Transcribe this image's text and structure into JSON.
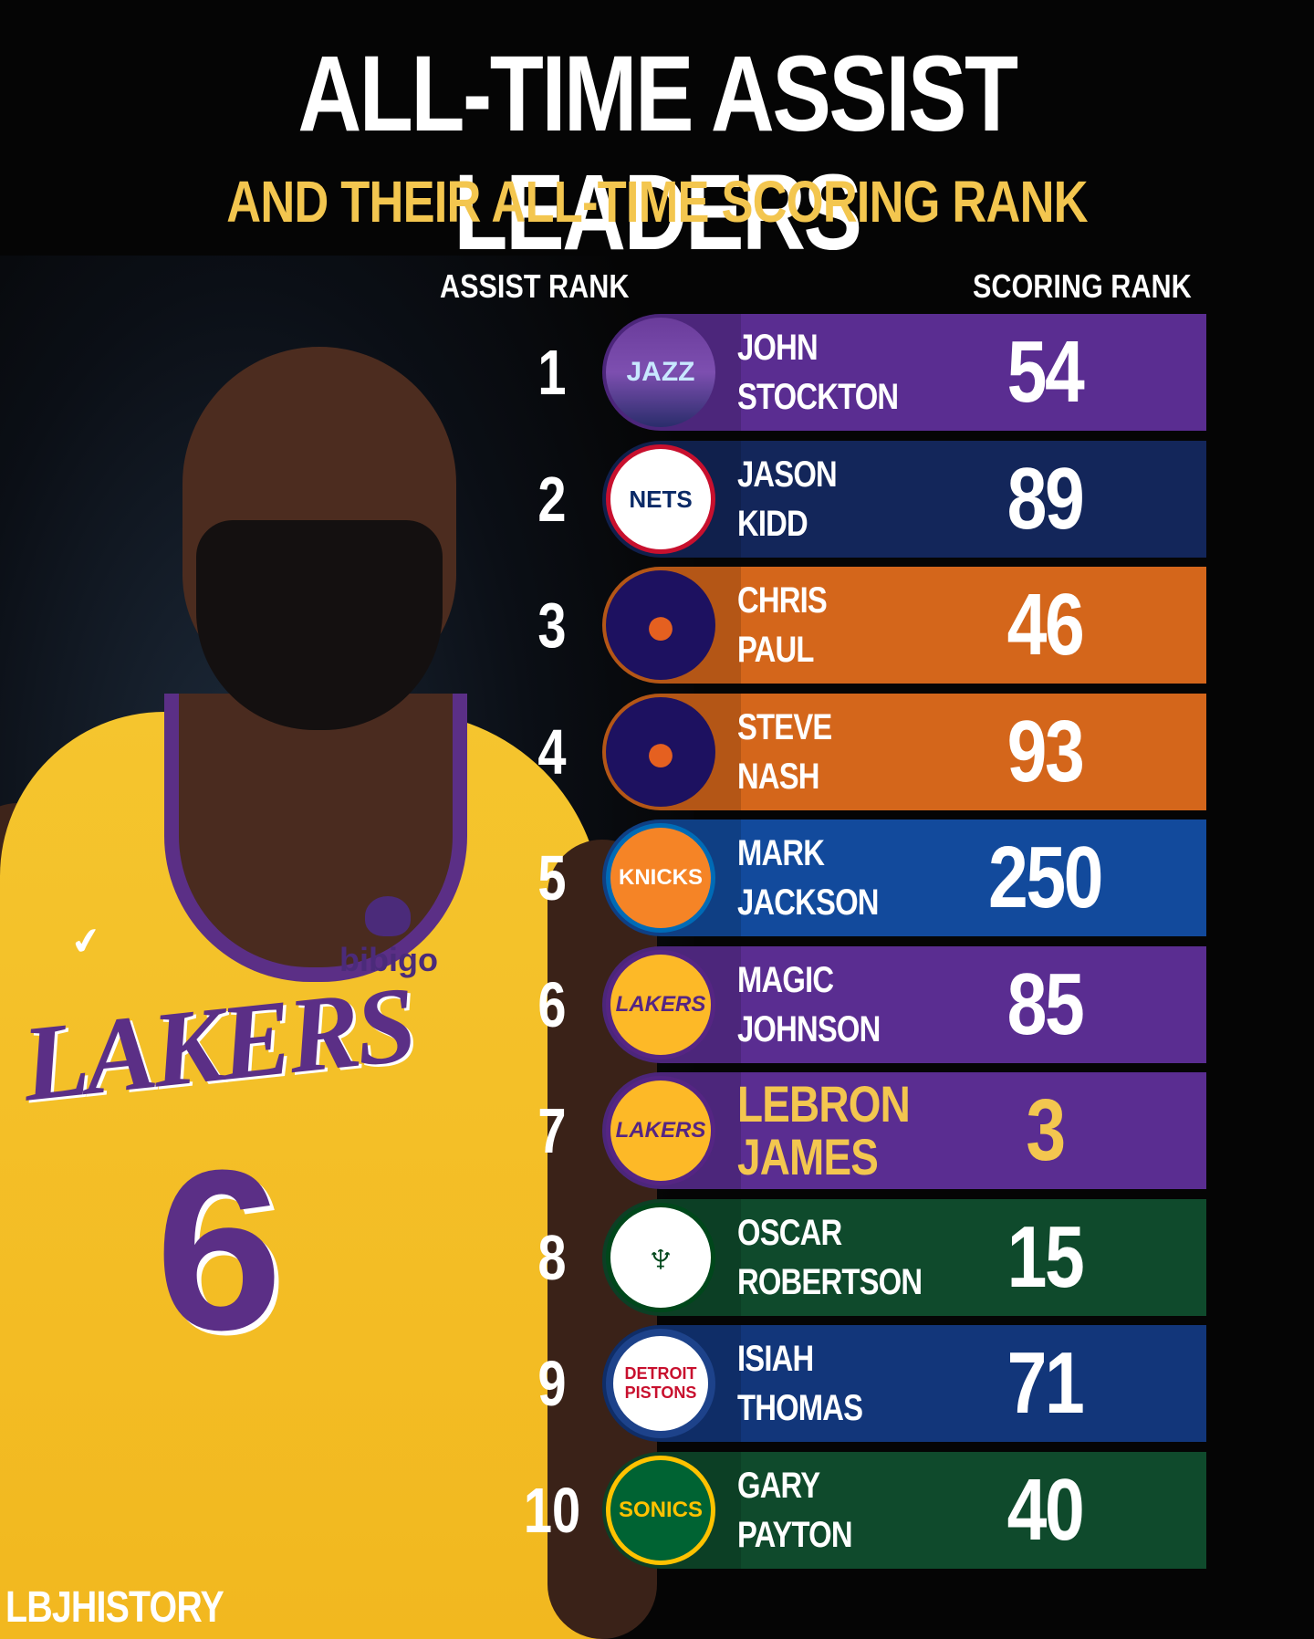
{
  "header": {
    "title": "ALL-TIME ASSIST LEADERS",
    "subtitle": "AND THEIR ALL-TIME SCORING RANK"
  },
  "columns": {
    "assist_rank": "ASSIST RANK",
    "scoring_rank": "SCORING RANK"
  },
  "player_photo": {
    "jersey_wordmark": "LAKERS",
    "jersey_number": "6",
    "sponsor": "bibigo"
  },
  "rows": [
    {
      "assist_rank": "1",
      "first": "JOHN",
      "last": "STOCKTON",
      "scoring_rank": "54",
      "team_logo": "jazz-logo",
      "logo_text": "JAZZ",
      "color": "#5a2d91"
    },
    {
      "assist_rank": "2",
      "first": "JASON",
      "last": "KIDD",
      "scoring_rank": "89",
      "team_logo": "nets-logo",
      "logo_text": "NETS",
      "color": "#13265a"
    },
    {
      "assist_rank": "3",
      "first": "CHRIS",
      "last": "PAUL",
      "scoring_rank": "46",
      "team_logo": "suns-logo",
      "logo_text": "●",
      "color": "#d4661b"
    },
    {
      "assist_rank": "4",
      "first": "STEVE",
      "last": "NASH",
      "scoring_rank": "93",
      "team_logo": "suns-logo",
      "logo_text": "●",
      "color": "#d4661b"
    },
    {
      "assist_rank": "5",
      "first": "MARK",
      "last": "JACKSON",
      "scoring_rank": "250",
      "team_logo": "knicks-logo",
      "logo_text": "KNICKS",
      "color": "#124a9c"
    },
    {
      "assist_rank": "6",
      "first": "MAGIC",
      "last": "JOHNSON",
      "scoring_rank": "85",
      "team_logo": "lakers-logo",
      "logo_text": "LAKERS",
      "color": "#5a2d91"
    },
    {
      "assist_rank": "7",
      "first": "LEBRON",
      "last": "JAMES",
      "scoring_rank": "3",
      "team_logo": "lakers-logo",
      "logo_text": "LAKERS",
      "color": "#5a2d91",
      "highlight_color": "#f3c64f"
    },
    {
      "assist_rank": "8",
      "first": "OSCAR",
      "last": "ROBERTSON",
      "scoring_rank": "15",
      "team_logo": "bucks-logo",
      "logo_text": "♆",
      "color": "#0f4a2c"
    },
    {
      "assist_rank": "9",
      "first": "ISIAH",
      "last": "THOMAS",
      "scoring_rank": "71",
      "team_logo": "pistons-logo",
      "logo_text": "DETROIT PISTONS",
      "color": "#12367a"
    },
    {
      "assist_rank": "10",
      "first": "GARY",
      "last": "PAYTON",
      "scoring_rank": "40",
      "team_logo": "sonics-logo",
      "logo_text": "SONICS",
      "color": "#0f4a2c"
    }
  ],
  "watermark": "LBJHISTORY"
}
